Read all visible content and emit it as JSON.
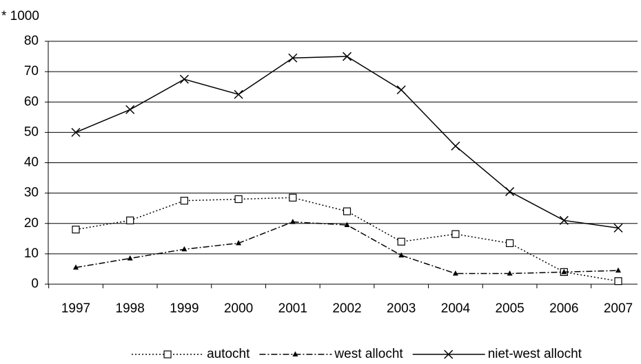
{
  "chart_data": {
    "type": "line",
    "ylabel": "* 1000",
    "categories": [
      "1997",
      "1998",
      "1999",
      "2000",
      "2001",
      "2002",
      "2003",
      "2004",
      "2005",
      "2006",
      "2007"
    ],
    "series": [
      {
        "name": "autocht",
        "color": "#000000",
        "dash": "dotted",
        "marker": "square",
        "values": [
          18,
          21,
          27.5,
          28,
          28.5,
          24,
          14,
          16.5,
          13.5,
          4,
          1
        ]
      },
      {
        "name": "west allocht",
        "color": "#000000",
        "dash": "dashdot",
        "marker": "triangle",
        "values": [
          5.5,
          8.5,
          11.5,
          13.5,
          20.5,
          19.5,
          9.5,
          3.5,
          3.5,
          4,
          4.5
        ]
      },
      {
        "name": "niet-west allocht",
        "color": "#000000",
        "dash": "solid",
        "marker": "x",
        "values": [
          50,
          57.5,
          67.5,
          62.5,
          74.5,
          75,
          64,
          45.5,
          30.5,
          21,
          18.5
        ]
      }
    ],
    "ylim": [
      0,
      80
    ],
    "yticks": [
      0,
      10,
      20,
      30,
      40,
      50,
      60,
      70,
      80
    ],
    "grid": true,
    "legend": "bottom"
  }
}
